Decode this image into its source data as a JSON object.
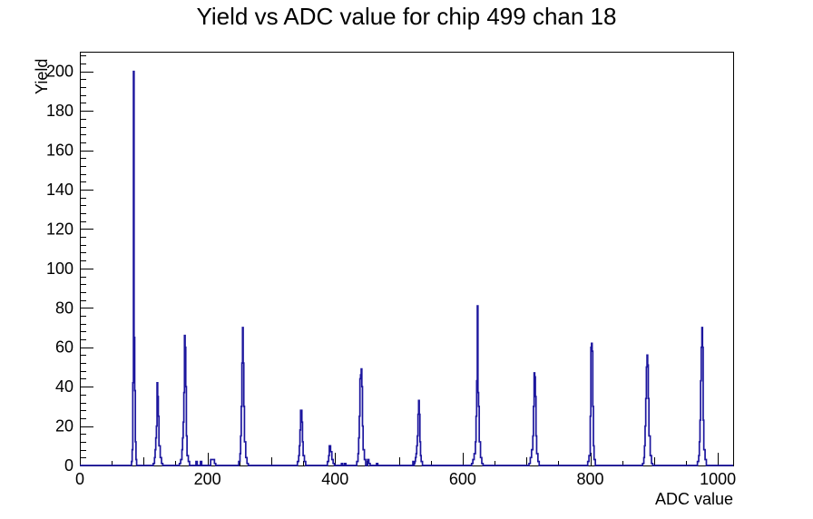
{
  "page": {
    "background": "#ffffff"
  },
  "chart_data": {
    "type": "histogram-step",
    "title": "Yield vs ADC value for chip 499 chan 18",
    "xlabel": "ADC value",
    "ylabel": "Yield",
    "xlim": [
      0,
      1024
    ],
    "ylim": [
      0,
      210
    ],
    "x_tick_labels": [
      "0",
      "200",
      "400",
      "600",
      "800",
      "1000"
    ],
    "x_major_ticks": [
      0,
      200,
      400,
      600,
      800,
      1000
    ],
    "x_medium_step": 100,
    "x_minor_step": 50,
    "y_tick_labels": [
      "0",
      "20",
      "40",
      "60",
      "80",
      "100",
      "120",
      "140",
      "160",
      "180",
      "200"
    ],
    "y_major_step": 20,
    "y_minor_step": 4,
    "grid": "off",
    "legend": "none",
    "line_color": "#1c169e",
    "frame_color": "#000000",
    "series": [
      {
        "name": "yield_histogram",
        "points": [
          [
            0,
            0
          ],
          [
            80,
            0
          ],
          [
            81,
            2
          ],
          [
            82,
            8
          ],
          [
            83,
            42
          ],
          [
            84,
            200
          ],
          [
            85,
            65
          ],
          [
            86,
            38
          ],
          [
            87,
            12
          ],
          [
            88,
            3
          ],
          [
            89,
            0
          ],
          [
            114,
            0
          ],
          [
            115,
            1
          ],
          [
            117,
            4
          ],
          [
            118,
            8
          ],
          [
            119,
            14
          ],
          [
            120,
            20
          ],
          [
            121,
            42
          ],
          [
            122,
            35
          ],
          [
            123,
            25
          ],
          [
            124,
            10
          ],
          [
            126,
            4
          ],
          [
            128,
            1
          ],
          [
            130,
            0
          ],
          [
            155,
            0
          ],
          [
            156,
            1
          ],
          [
            158,
            3
          ],
          [
            160,
            8
          ],
          [
            161,
            14
          ],
          [
            162,
            22
          ],
          [
            163,
            37
          ],
          [
            164,
            66
          ],
          [
            165,
            60
          ],
          [
            166,
            40
          ],
          [
            167,
            15
          ],
          [
            168,
            5
          ],
          [
            170,
            2
          ],
          [
            172,
            0
          ],
          [
            181,
            0
          ],
          [
            182,
            2
          ],
          [
            184,
            0
          ],
          [
            188,
            0
          ],
          [
            189,
            2
          ],
          [
            191,
            0
          ],
          [
            204,
            0
          ],
          [
            205,
            3
          ],
          [
            209,
            3
          ],
          [
            211,
            1
          ],
          [
            213,
            0
          ],
          [
            247,
            0
          ],
          [
            249,
            2
          ],
          [
            251,
            6
          ],
          [
            252,
            15
          ],
          [
            253,
            30
          ],
          [
            254,
            52
          ],
          [
            255,
            70
          ],
          [
            256,
            52
          ],
          [
            257,
            30
          ],
          [
            258,
            12
          ],
          [
            260,
            4
          ],
          [
            262,
            1
          ],
          [
            264,
            0
          ],
          [
            339,
            0
          ],
          [
            341,
            2
          ],
          [
            343,
            5
          ],
          [
            344,
            10
          ],
          [
            345,
            18
          ],
          [
            346,
            28
          ],
          [
            348,
            22
          ],
          [
            349,
            12
          ],
          [
            350,
            5
          ],
          [
            352,
            2
          ],
          [
            354,
            0
          ],
          [
            386,
            0
          ],
          [
            388,
            2
          ],
          [
            390,
            5
          ],
          [
            391,
            10
          ],
          [
            392,
            10
          ],
          [
            393,
            7
          ],
          [
            395,
            3
          ],
          [
            397,
            1
          ],
          [
            399,
            0
          ],
          [
            409,
            0
          ],
          [
            410,
            1
          ],
          [
            412,
            0
          ],
          [
            414,
            0
          ],
          [
            415,
            1
          ],
          [
            417,
            0
          ],
          [
            432,
            0
          ],
          [
            434,
            2
          ],
          [
            436,
            6
          ],
          [
            437,
            14
          ],
          [
            438,
            25
          ],
          [
            439,
            44
          ],
          [
            440,
            46
          ],
          [
            441,
            49
          ],
          [
            442,
            40
          ],
          [
            443,
            20
          ],
          [
            444,
            8
          ],
          [
            446,
            3
          ],
          [
            448,
            0
          ],
          [
            450,
            0
          ],
          [
            451,
            3
          ],
          [
            453,
            1
          ],
          [
            455,
            0
          ],
          [
            464,
            0
          ],
          [
            465,
            1
          ],
          [
            467,
            0
          ],
          [
            521,
            0
          ],
          [
            522,
            2
          ],
          [
            523,
            0
          ],
          [
            524,
            1
          ],
          [
            525,
            2
          ],
          [
            526,
            4
          ],
          [
            527,
            6
          ],
          [
            528,
            10
          ],
          [
            529,
            15
          ],
          [
            530,
            26
          ],
          [
            531,
            33
          ],
          [
            532,
            26
          ],
          [
            533,
            12
          ],
          [
            534,
            5
          ],
          [
            535,
            2
          ],
          [
            537,
            0
          ],
          [
            612,
            0
          ],
          [
            614,
            1
          ],
          [
            616,
            3
          ],
          [
            618,
            6
          ],
          [
            620,
            12
          ],
          [
            621,
            25
          ],
          [
            622,
            43
          ],
          [
            623,
            81
          ],
          [
            624,
            37
          ],
          [
            625,
            30
          ],
          [
            626,
            12
          ],
          [
            628,
            4
          ],
          [
            630,
            1
          ],
          [
            632,
            0
          ],
          [
            702,
            0
          ],
          [
            704,
            1
          ],
          [
            706,
            4
          ],
          [
            708,
            8
          ],
          [
            710,
            15
          ],
          [
            711,
            30
          ],
          [
            712,
            47
          ],
          [
            713,
            45
          ],
          [
            714,
            35
          ],
          [
            715,
            15
          ],
          [
            716,
            6
          ],
          [
            718,
            2
          ],
          [
            720,
            0
          ],
          [
            794,
            0
          ],
          [
            796,
            2
          ],
          [
            798,
            5
          ],
          [
            800,
            25
          ],
          [
            801,
            60
          ],
          [
            802,
            62
          ],
          [
            803,
            58
          ],
          [
            804,
            30
          ],
          [
            805,
            10
          ],
          [
            806,
            3
          ],
          [
            808,
            0
          ],
          [
            880,
            0
          ],
          [
            882,
            1
          ],
          [
            884,
            4
          ],
          [
            885,
            10
          ],
          [
            886,
            20
          ],
          [
            887,
            34
          ],
          [
            888,
            50
          ],
          [
            889,
            56
          ],
          [
            890,
            51
          ],
          [
            891,
            34
          ],
          [
            892,
            15
          ],
          [
            894,
            5
          ],
          [
            896,
            1
          ],
          [
            898,
            0
          ],
          [
            966,
            0
          ],
          [
            968,
            2
          ],
          [
            970,
            5
          ],
          [
            971,
            12
          ],
          [
            972,
            23
          ],
          [
            973,
            43
          ],
          [
            974,
            60
          ],
          [
            975,
            70
          ],
          [
            976,
            60
          ],
          [
            977,
            23
          ],
          [
            978,
            8
          ],
          [
            980,
            3
          ],
          [
            982,
            0
          ],
          [
            1024,
            0
          ]
        ]
      }
    ]
  }
}
